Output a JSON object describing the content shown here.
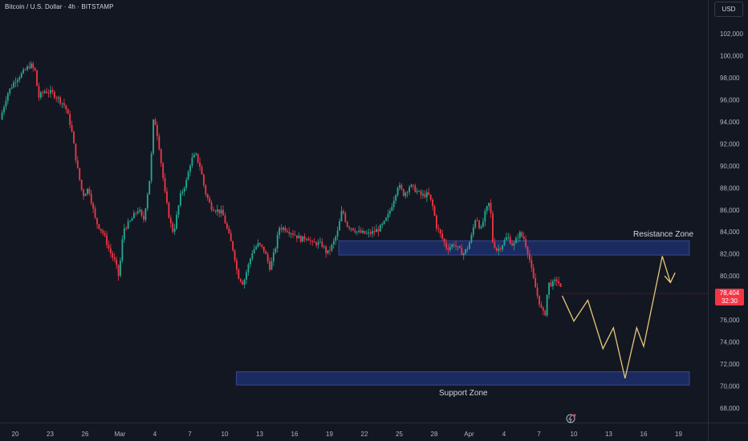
{
  "header": {
    "title": "Bitcoin / U.S. Dollar · 4h · BITSTAMP"
  },
  "currency_button": "USD",
  "last_price": {
    "value": "78,404",
    "countdown": "32:30",
    "color": "#f23645"
  },
  "colors": {
    "background": "#131722",
    "up": "#22ab94",
    "down": "#f23645",
    "zone": "#1e2d66",
    "zone_border": "#3d52a6",
    "projection": "#e6c878",
    "axis_text": "#b2b5be"
  },
  "chart_data": {
    "type": "candlestick",
    "symbol": "BTCUSD",
    "timeframe": "4h",
    "exchange": "BITSTAMP",
    "ylim": [
      66500,
      104500
    ],
    "y_ticks": [
      68000,
      70000,
      72000,
      74000,
      76000,
      78000,
      80000,
      82000,
      84000,
      86000,
      88000,
      90000,
      92000,
      94000,
      96000,
      98000,
      100000,
      102000
    ],
    "y_tick_labels": [
      "68,000",
      "70,000",
      "72,000",
      "74,000",
      "76,000",
      "78,000",
      "80,000",
      "82,000",
      "84,000",
      "86,000",
      "88,000",
      "90,000",
      "92,000",
      "94,000",
      "96,000",
      "98,000",
      "100,000",
      "102,000"
    ],
    "x_ticks": [
      {
        "label": "20",
        "day": 0
      },
      {
        "label": "23",
        "day": 3
      },
      {
        "label": "26",
        "day": 6
      },
      {
        "label": "Mar",
        "day": 9
      },
      {
        "label": "4",
        "day": 12
      },
      {
        "label": "7",
        "day": 15
      },
      {
        "label": "10",
        "day": 18
      },
      {
        "label": "13",
        "day": 21
      },
      {
        "label": "16",
        "day": 24
      },
      {
        "label": "19",
        "day": 27
      },
      {
        "label": "22",
        "day": 30
      },
      {
        "label": "25",
        "day": 33
      },
      {
        "label": "28",
        "day": 36
      },
      {
        "label": "Apr",
        "day": 39
      },
      {
        "label": "4",
        "day": 42
      },
      {
        "label": "7",
        "day": 45
      },
      {
        "label": "10",
        "day": 48
      },
      {
        "label": "13",
        "day": 51
      },
      {
        "label": "16",
        "day": 54
      },
      {
        "label": "19",
        "day": 57
      }
    ],
    "price_path": [
      [
        -1.3,
        94200
      ],
      [
        -0.7,
        96500
      ],
      [
        0.0,
        97800
      ],
      [
        0.7,
        98500
      ],
      [
        1.3,
        99200
      ],
      [
        1.7,
        98600
      ],
      [
        2.0,
        96200
      ],
      [
        2.5,
        96800
      ],
      [
        3.2,
        96600
      ],
      [
        3.8,
        96000
      ],
      [
        4.3,
        95400
      ],
      [
        4.8,
        93500
      ],
      [
        5.3,
        90000
      ],
      [
        5.8,
        87300
      ],
      [
        6.3,
        88000
      ],
      [
        6.9,
        85000
      ],
      [
        7.6,
        83800
      ],
      [
        8.1,
        82300
      ],
      [
        8.6,
        81200
      ],
      [
        8.9,
        79900
      ],
      [
        9.3,
        84300
      ],
      [
        9.8,
        84800
      ],
      [
        10.2,
        85500
      ],
      [
        10.6,
        86100
      ],
      [
        11.0,
        84900
      ],
      [
        11.6,
        89200
      ],
      [
        11.9,
        94600
      ],
      [
        12.3,
        92300
      ],
      [
        12.9,
        87200
      ],
      [
        13.3,
        84900
      ],
      [
        13.6,
        83900
      ],
      [
        14.2,
        87300
      ],
      [
        14.7,
        88600
      ],
      [
        15.1,
        90500
      ],
      [
        15.5,
        91000
      ],
      [
        15.9,
        89900
      ],
      [
        16.3,
        87700
      ],
      [
        16.8,
        86300
      ],
      [
        17.3,
        86000
      ],
      [
        17.8,
        85700
      ],
      [
        18.3,
        83900
      ],
      [
        18.8,
        82100
      ],
      [
        19.1,
        80100
      ],
      [
        19.6,
        79300
      ],
      [
        19.9,
        80500
      ],
      [
        20.4,
        82300
      ],
      [
        20.9,
        82900
      ],
      [
        21.4,
        82300
      ],
      [
        21.9,
        80700
      ],
      [
        22.3,
        82300
      ],
      [
        22.7,
        84400
      ],
      [
        23.2,
        84300
      ],
      [
        23.7,
        84000
      ],
      [
        24.2,
        83600
      ],
      [
        24.6,
        83300
      ],
      [
        25.1,
        83600
      ],
      [
        25.5,
        82900
      ],
      [
        25.9,
        83000
      ],
      [
        26.4,
        82800
      ],
      [
        26.8,
        82000
      ],
      [
        27.3,
        82900
      ],
      [
        27.7,
        84000
      ],
      [
        28.1,
        86100
      ],
      [
        28.5,
        84600
      ],
      [
        28.9,
        84400
      ],
      [
        29.4,
        84000
      ],
      [
        29.8,
        83900
      ],
      [
        30.3,
        83800
      ],
      [
        30.8,
        84000
      ],
      [
        31.3,
        84300
      ],
      [
        31.7,
        84800
      ],
      [
        32.1,
        85600
      ],
      [
        32.5,
        86900
      ],
      [
        32.9,
        88300
      ],
      [
        33.4,
        87400
      ],
      [
        33.9,
        88200
      ],
      [
        34.4,
        87800
      ],
      [
        34.9,
        87300
      ],
      [
        35.5,
        87400
      ],
      [
        35.9,
        86200
      ],
      [
        36.2,
        84500
      ],
      [
        36.6,
        83600
      ],
      [
        37.1,
        82500
      ],
      [
        37.7,
        82900
      ],
      [
        38.1,
        82400
      ],
      [
        38.5,
        82000
      ],
      [
        38.9,
        82600
      ],
      [
        39.2,
        83600
      ],
      [
        39.6,
        85500
      ],
      [
        40.0,
        84100
      ],
      [
        40.4,
        85800
      ],
      [
        40.8,
        86800
      ],
      [
        41.0,
        83200
      ],
      [
        41.4,
        82300
      ],
      [
        41.8,
        82800
      ],
      [
        42.3,
        83600
      ],
      [
        42.8,
        82700
      ],
      [
        43.3,
        83900
      ],
      [
        43.7,
        83400
      ],
      [
        44.1,
        82000
      ],
      [
        44.5,
        79800
      ],
      [
        44.9,
        78100
      ],
      [
        45.2,
        77000
      ],
      [
        45.5,
        76300
      ],
      [
        45.8,
        79300
      ],
      [
        46.2,
        79300
      ],
      [
        46.6,
        79700
      ],
      [
        47.0,
        78400
      ]
    ],
    "last_price": 78404,
    "zones": [
      {
        "label": "Resistance Zone",
        "from": 81900,
        "to": 83200,
        "start_day": 27.8
      },
      {
        "label": "Support Zone",
        "from": 70100,
        "to": 71300,
        "start_day": 19.0
      }
    ],
    "projection_path": [
      [
        47.0,
        78200
      ],
      [
        48.0,
        75900
      ],
      [
        49.2,
        77800
      ],
      [
        50.5,
        73400
      ],
      [
        51.4,
        75300
      ],
      [
        52.4,
        70700
      ],
      [
        53.4,
        75300
      ],
      [
        54.0,
        73600
      ],
      [
        55.6,
        81800
      ],
      [
        56.3,
        79400
      ]
    ],
    "projection_arrowhead": [
      [
        55.8,
        80000
      ],
      [
        56.3,
        79400
      ],
      [
        56.7,
        80300
      ]
    ]
  }
}
